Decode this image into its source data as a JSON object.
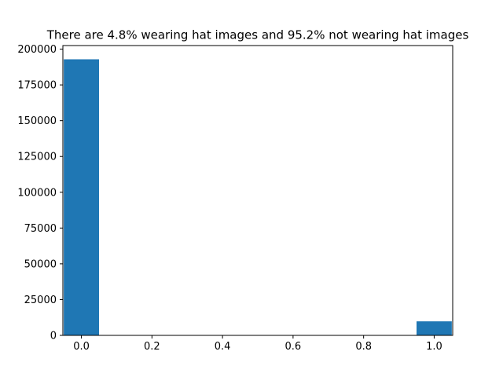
{
  "chart_data": {
    "type": "bar",
    "title": "There are 4.8% wearing hat images and 95.2% not wearing hat images",
    "xlabel": "",
    "ylabel": "",
    "bars": [
      {
        "x": 0.0,
        "value": 192900
      },
      {
        "x": 1.0,
        "value": 9800
      }
    ],
    "bar_width": 0.1,
    "xlim": [
      -0.0525,
      1.0525
    ],
    "ylim": [
      0,
      202500
    ],
    "x_ticks": [
      "0.0",
      "0.2",
      "0.4",
      "0.6",
      "0.8",
      "1.0"
    ],
    "y_ticks": [
      "0",
      "25000",
      "50000",
      "75000",
      "100000",
      "125000",
      "150000",
      "175000",
      "200000"
    ],
    "grid": false,
    "legend": "none",
    "bar_color": "#1f77b4"
  }
}
